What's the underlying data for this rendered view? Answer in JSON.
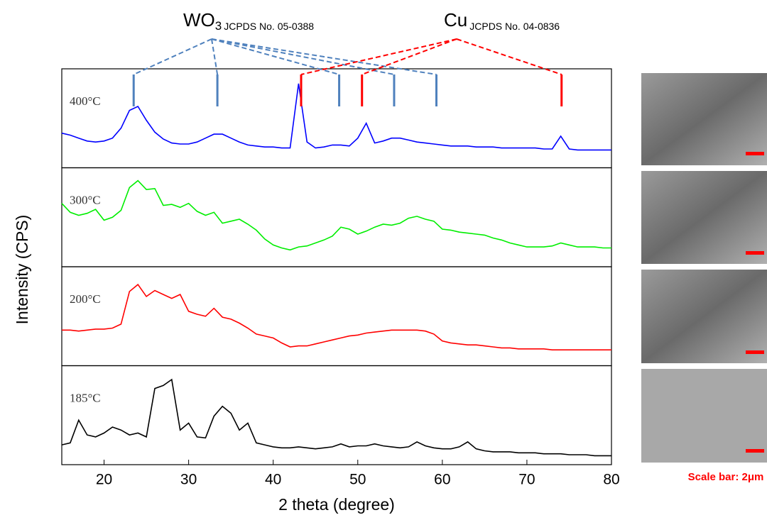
{
  "chart_data": {
    "type": "line",
    "xlabel": "2 theta (degree)",
    "ylabel": "Intensity (CPS)",
    "xlim": [
      15,
      80
    ],
    "xticks": [
      20,
      30,
      40,
      50,
      60,
      70,
      80
    ],
    "ylim": [
      0,
      100
    ],
    "x": [
      15,
      16,
      17,
      18,
      19,
      20,
      21,
      22,
      23,
      24,
      25,
      26,
      27,
      28,
      29,
      30,
      31,
      32,
      33,
      34,
      35,
      36,
      37,
      38,
      39,
      40,
      41,
      42,
      43,
      44,
      45,
      46,
      47,
      48,
      49,
      50,
      51,
      52,
      53,
      54,
      55,
      56,
      57,
      58,
      59,
      60,
      61,
      62,
      63,
      64,
      65,
      66,
      67,
      68,
      69,
      70,
      71,
      72,
      73,
      74,
      75,
      76,
      77,
      78,
      79,
      80
    ],
    "series": [
      {
        "name": "400°C",
        "color": "#0000ff",
        "values": [
          35,
          33,
          30,
          27,
          26,
          27,
          30,
          40,
          58,
          62,
          48,
          36,
          29,
          25,
          24,
          24,
          26,
          30,
          34,
          34,
          30,
          26,
          23,
          22,
          21,
          21,
          20,
          20,
          85,
          26,
          20,
          21,
          23,
          23,
          22,
          30,
          45,
          25,
          27,
          30,
          30,
          28,
          26,
          25,
          24,
          23,
          22,
          22,
          22,
          21,
          21,
          21,
          20,
          20,
          20,
          20,
          20,
          19,
          19,
          32,
          19,
          18,
          18,
          18,
          18,
          18
        ]
      },
      {
        "name": "300°C",
        "color": "#00ee00",
        "values": [
          64,
          55,
          52,
          54,
          58,
          47,
          50,
          57,
          80,
          87,
          78,
          79,
          62,
          63,
          60,
          64,
          56,
          52,
          55,
          44,
          46,
          48,
          43,
          37,
          28,
          22,
          19,
          17,
          20,
          21,
          24,
          27,
          31,
          40,
          38,
          33,
          36,
          40,
          43,
          42,
          44,
          49,
          51,
          48,
          46,
          38,
          37,
          35,
          34,
          33,
          32,
          29,
          27,
          24,
          22,
          20,
          20,
          20,
          21,
          24,
          22,
          20,
          20,
          20,
          19,
          19
        ]
      },
      {
        "name": "200°C",
        "color": "#ff0000",
        "values": [
          36,
          36,
          35,
          36,
          37,
          37,
          38,
          42,
          75,
          82,
          70,
          76,
          72,
          68,
          72,
          55,
          52,
          50,
          58,
          49,
          47,
          43,
          38,
          32,
          30,
          28,
          23,
          19,
          20,
          20,
          22,
          24,
          26,
          28,
          30,
          31,
          33,
          34,
          35,
          36,
          36,
          36,
          36,
          35,
          32,
          25,
          23,
          22,
          21,
          21,
          20,
          19,
          18,
          18,
          17,
          17,
          17,
          17,
          16,
          16,
          16,
          16,
          16,
          16,
          16,
          16
        ]
      },
      {
        "name": "185°C",
        "color": "#000000",
        "values": [
          20,
          22,
          45,
          30,
          28,
          32,
          38,
          35,
          30,
          32,
          28,
          77,
          80,
          86,
          35,
          42,
          28,
          27,
          49,
          59,
          52,
          35,
          42,
          22,
          20,
          18,
          17,
          17,
          18,
          17,
          16,
          17,
          18,
          21,
          18,
          19,
          19,
          21,
          19,
          18,
          17,
          18,
          23,
          19,
          17,
          16,
          16,
          18,
          23,
          16,
          14,
          13,
          13,
          13,
          12,
          12,
          12,
          11,
          11,
          11,
          10,
          10,
          10,
          9,
          9,
          9
        ]
      }
    ],
    "references": [
      {
        "name": "WO",
        "subscript": "3",
        "note": "JCPDS No. 05-0388",
        "color": "#4f81bd",
        "positions": [
          23.5,
          33.4,
          47.8,
          54.3,
          59.3
        ]
      },
      {
        "name": "Cu",
        "note": "JCPDS No. 04-0836",
        "color": "#ff0000",
        "positions": [
          43.3,
          50.5,
          74.1
        ]
      }
    ],
    "scale_note": "Scale bar: 2μm"
  }
}
